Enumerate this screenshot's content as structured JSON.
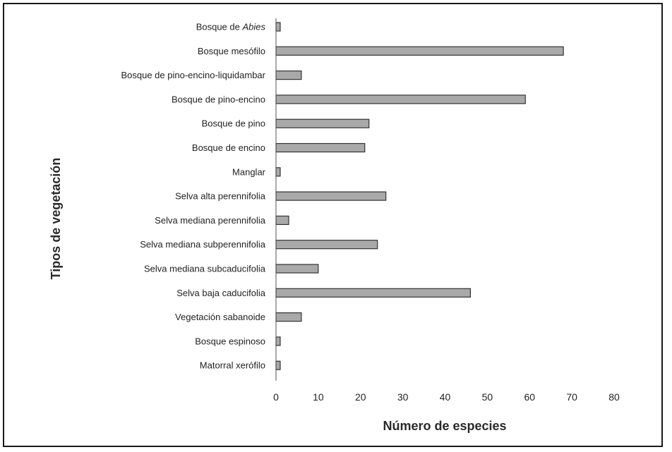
{
  "chart_data": {
    "type": "bar",
    "orientation": "horizontal",
    "title": "",
    "xlabel": "Número de especies",
    "ylabel": "Tipos de vegetación",
    "xlim": [
      0,
      80
    ],
    "xticks": [
      0,
      10,
      20,
      30,
      40,
      50,
      60,
      70,
      80
    ],
    "grid": false,
    "bar_color": "#a9a9a9",
    "bar_stroke": "#333333",
    "categories": [
      {
        "prefix": "Bosque de ",
        "italic": "Abies",
        "full": "Bosque de Abies"
      },
      {
        "prefix": "Bosque mesófilo",
        "italic": "",
        "full": "Bosque mesófilo"
      },
      {
        "prefix": "Bosque de pino-encino-liquidambar",
        "italic": "",
        "full": "Bosque de pino-encino-liquidambar"
      },
      {
        "prefix": "Bosque de pino-encino",
        "italic": "",
        "full": "Bosque de pino-encino"
      },
      {
        "prefix": "Bosque de  pino",
        "italic": "",
        "full": "Bosque de  pino"
      },
      {
        "prefix": "Bosque de encino",
        "italic": "",
        "full": "Bosque de encino"
      },
      {
        "prefix": "Manglar",
        "italic": "",
        "full": "Manglar"
      },
      {
        "prefix": "Selva alta perennifolia",
        "italic": "",
        "full": "Selva alta perennifolia"
      },
      {
        "prefix": "Selva mediana perennifolia",
        "italic": "",
        "full": "Selva mediana perennifolia"
      },
      {
        "prefix": "Selva mediana subperennifolia",
        "italic": "",
        "full": "Selva mediana subperennifolia"
      },
      {
        "prefix": "Selva mediana subcaducifolia",
        "italic": "",
        "full": "Selva mediana subcaducifolia"
      },
      {
        "prefix": "Selva baja caducifolia",
        "italic": "",
        "full": "Selva baja caducifolia"
      },
      {
        "prefix": "Vegetación sabanoide",
        "italic": "",
        "full": "Vegetación sabanoide"
      },
      {
        "prefix": "Bosque espinoso",
        "italic": "",
        "full": "Bosque espinoso"
      },
      {
        "prefix": "Matorral xerófilo",
        "italic": "",
        "full": "Matorral xerófilo"
      }
    ],
    "values": [
      1,
      68,
      6,
      59,
      22,
      21,
      1,
      26,
      3,
      24,
      10,
      46,
      6,
      1,
      1
    ]
  }
}
